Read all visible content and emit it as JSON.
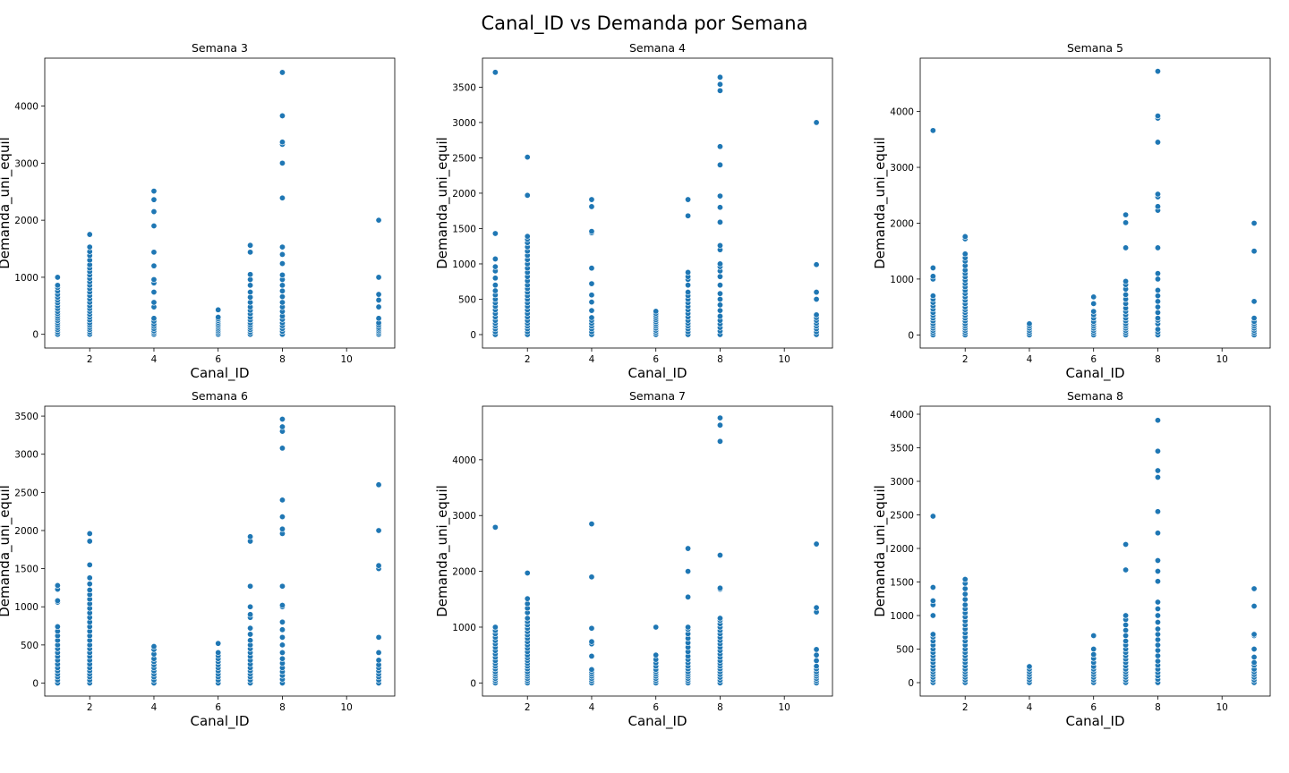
{
  "title": "Canal_ID vs Demanda por Semana",
  "colors": {
    "marker": "#1f77b4",
    "marker_edge": "#ffffff",
    "frame": "#000000"
  },
  "chart_data": [
    {
      "type": "scatter",
      "title": "Semana 3",
      "xlabel": "Canal_ID",
      "ylabel": "Demanda_uni_equil",
      "xlim": [
        0.6,
        11.5
      ],
      "ylim": [
        -240,
        4840
      ],
      "xticks": [
        2,
        4,
        6,
        8,
        10
      ],
      "yticks": [
        0,
        1000,
        2000,
        3000,
        4000
      ],
      "grid": false,
      "series": [
        {
          "x": 1,
          "y": [
            0,
            40,
            80,
            120,
            160,
            200,
            240,
            280,
            320,
            360,
            400,
            450,
            500,
            550,
            600,
            650,
            700,
            760,
            820,
            860,
            1000
          ]
        },
        {
          "x": 2,
          "y": [
            0,
            40,
            80,
            120,
            160,
            200,
            250,
            300,
            350,
            400,
            450,
            500,
            560,
            620,
            680,
            740,
            800,
            860,
            920,
            980,
            1040,
            1100,
            1160,
            1220,
            1300,
            1380,
            1450,
            1530,
            1750
          ]
        },
        {
          "x": 4,
          "y": [
            0,
            30,
            60,
            100,
            140,
            180,
            230,
            280,
            480,
            560,
            740,
            900,
            960,
            1200,
            1440,
            1900,
            2150,
            2360,
            2510
          ]
        },
        {
          "x": 6,
          "y": [
            0,
            30,
            60,
            90,
            120,
            150,
            180,
            210,
            240,
            270,
            300,
            430
          ]
        },
        {
          "x": 7,
          "y": [
            0,
            40,
            80,
            120,
            160,
            200,
            250,
            300,
            360,
            420,
            480,
            560,
            650,
            740,
            860,
            960,
            1050,
            1440,
            1560
          ]
        },
        {
          "x": 8,
          "y": [
            0,
            50,
            100,
            150,
            200,
            260,
            320,
            400,
            480,
            560,
            660,
            760,
            860,
            960,
            1040,
            1240,
            1400,
            1530,
            2390,
            3000,
            3330,
            3370,
            3830,
            4590
          ]
        },
        {
          "x": 11,
          "y": [
            0,
            30,
            60,
            90,
            120,
            160,
            200,
            280,
            480,
            600,
            700,
            1000,
            2000
          ]
        }
      ]
    },
    {
      "type": "scatter",
      "title": "Semana 4",
      "xlabel": "Canal_ID",
      "ylabel": "Demanda_uni_equil",
      "xlim": [
        0.6,
        11.5
      ],
      "ylim": [
        -190,
        3910
      ],
      "xticks": [
        2,
        4,
        6,
        8,
        10
      ],
      "yticks": [
        0,
        500,
        1000,
        1500,
        2000,
        2500,
        3000,
        3500
      ],
      "grid": false,
      "series": [
        {
          "x": 1,
          "y": [
            0,
            40,
            80,
            120,
            160,
            200,
            250,
            300,
            350,
            400,
            450,
            500,
            560,
            620,
            700,
            800,
            900,
            960,
            1070,
            1430,
            3710
          ]
        },
        {
          "x": 2,
          "y": [
            0,
            40,
            80,
            120,
            160,
            200,
            250,
            300,
            350,
            400,
            450,
            500,
            550,
            600,
            650,
            700,
            760,
            820,
            880,
            940,
            1000,
            1060,
            1120,
            1180,
            1240,
            1300,
            1350,
            1390,
            1970,
            2510
          ]
        },
        {
          "x": 4,
          "y": [
            0,
            40,
            80,
            120,
            160,
            200,
            240,
            340,
            460,
            560,
            720,
            940,
            1440,
            1460,
            1810,
            1910
          ]
        },
        {
          "x": 6,
          "y": [
            0,
            30,
            60,
            90,
            120,
            150,
            180,
            210,
            240,
            270,
            300,
            330
          ]
        },
        {
          "x": 7,
          "y": [
            0,
            40,
            80,
            120,
            160,
            200,
            250,
            300,
            350,
            400,
            450,
            500,
            550,
            600,
            700,
            780,
            820,
            880,
            1680,
            1910
          ]
        },
        {
          "x": 8,
          "y": [
            0,
            50,
            100,
            150,
            200,
            260,
            340,
            420,
            500,
            580,
            700,
            820,
            900,
            960,
            1000,
            1200,
            1260,
            1590,
            1800,
            1960,
            2400,
            2660,
            3450,
            3540,
            3640
          ]
        },
        {
          "x": 11,
          "y": [
            0,
            40,
            80,
            120,
            160,
            200,
            240,
            280,
            500,
            600,
            990,
            3000
          ]
        }
      ]
    },
    {
      "type": "scatter",
      "title": "Semana 5",
      "xlabel": "Canal_ID",
      "ylabel": "Demanda_uni_equil",
      "xlim": [
        0.6,
        11.5
      ],
      "ylim": [
        -235,
        4955
      ],
      "xticks": [
        2,
        4,
        6,
        8,
        10
      ],
      "yticks": [
        0,
        1000,
        2000,
        3000,
        4000
      ],
      "grid": false,
      "series": [
        {
          "x": 1,
          "y": [
            0,
            40,
            80,
            120,
            160,
            200,
            250,
            300,
            350,
            400,
            460,
            520,
            580,
            640,
            700,
            1000,
            1050,
            1200,
            3660
          ]
        },
        {
          "x": 2,
          "y": [
            0,
            40,
            80,
            120,
            160,
            200,
            250,
            300,
            350,
            400,
            450,
            500,
            560,
            620,
            680,
            740,
            800,
            860,
            920,
            980,
            1040,
            1100,
            1160,
            1240,
            1320,
            1380,
            1450,
            1720,
            1760
          ]
        },
        {
          "x": 4,
          "y": [
            0,
            40,
            80,
            120,
            160,
            200
          ]
        },
        {
          "x": 6,
          "y": [
            0,
            40,
            80,
            120,
            160,
            200,
            240,
            300,
            360,
            420,
            560,
            680
          ]
        },
        {
          "x": 7,
          "y": [
            0,
            40,
            80,
            120,
            160,
            200,
            250,
            300,
            360,
            420,
            480,
            560,
            640,
            720,
            820,
            900,
            960,
            1560,
            2010,
            2150
          ]
        },
        {
          "x": 8,
          "y": [
            0,
            50,
            100,
            200,
            260,
            300,
            400,
            500,
            600,
            700,
            800,
            1000,
            1100,
            1560,
            2230,
            2300,
            2470,
            2520,
            3450,
            3880,
            3920,
            4720
          ]
        },
        {
          "x": 11,
          "y": [
            0,
            40,
            80,
            120,
            160,
            200,
            240,
            300,
            600,
            1500,
            2000
          ]
        }
      ]
    },
    {
      "type": "scatter",
      "title": "Semana 6",
      "xlabel": "Canal_ID",
      "ylabel": "Demanda_uni_equil",
      "xlim": [
        0.6,
        11.5
      ],
      "ylim": [
        -170,
        3630
      ],
      "xticks": [
        2,
        4,
        6,
        8,
        10
      ],
      "yticks": [
        0,
        500,
        1000,
        1500,
        2000,
        2500,
        3000,
        3500
      ],
      "grid": false,
      "series": [
        {
          "x": 1,
          "y": [
            0,
            40,
            80,
            120,
            160,
            200,
            250,
            300,
            350,
            400,
            450,
            500,
            560,
            620,
            680,
            740,
            1060,
            1080,
            1230,
            1280
          ]
        },
        {
          "x": 2,
          "y": [
            0,
            40,
            80,
            120,
            160,
            200,
            250,
            300,
            350,
            400,
            450,
            500,
            560,
            620,
            680,
            740,
            800,
            860,
            920,
            980,
            1040,
            1100,
            1160,
            1220,
            1300,
            1380,
            1550,
            1860,
            1960
          ]
        },
        {
          "x": 4,
          "y": [
            0,
            40,
            80,
            120,
            160,
            200,
            240,
            280,
            320,
            380,
            440,
            480
          ]
        },
        {
          "x": 6,
          "y": [
            0,
            40,
            80,
            120,
            160,
            200,
            240,
            280,
            320,
            360,
            400,
            520
          ]
        },
        {
          "x": 7,
          "y": [
            0,
            40,
            80,
            120,
            160,
            200,
            250,
            300,
            350,
            400,
            450,
            500,
            560,
            640,
            720,
            860,
            900,
            1000,
            1270,
            1860,
            1920
          ]
        },
        {
          "x": 8,
          "y": [
            0,
            50,
            100,
            150,
            200,
            260,
            320,
            400,
            500,
            600,
            700,
            800,
            1000,
            1020,
            1270,
            1960,
            2020,
            2180,
            2400,
            3080,
            3300,
            3360,
            3460
          ]
        },
        {
          "x": 11,
          "y": [
            0,
            40,
            80,
            120,
            160,
            200,
            240,
            300,
            400,
            600,
            1500,
            1540,
            2000,
            2600
          ]
        }
      ]
    },
    {
      "type": "scatter",
      "title": "Semana 7",
      "xlabel": "Canal_ID",
      "ylabel": "Demanda_uni_equil",
      "xlim": [
        0.6,
        11.5
      ],
      "ylim": [
        -235,
        4960
      ],
      "xticks": [
        2,
        4,
        6,
        8,
        10
      ],
      "yticks": [
        0,
        1000,
        2000,
        3000,
        4000
      ],
      "grid": false,
      "series": [
        {
          "x": 1,
          "y": [
            0,
            40,
            80,
            120,
            160,
            200,
            250,
            300,
            350,
            400,
            460,
            520,
            580,
            640,
            700,
            760,
            820,
            880,
            940,
            1000,
            2790
          ]
        },
        {
          "x": 2,
          "y": [
            0,
            40,
            80,
            120,
            160,
            200,
            250,
            300,
            350,
            400,
            450,
            500,
            560,
            620,
            680,
            740,
            800,
            860,
            920,
            980,
            1040,
            1100,
            1160,
            1260,
            1340,
            1420,
            1510,
            1970
          ]
        },
        {
          "x": 4,
          "y": [
            0,
            40,
            80,
            120,
            160,
            200,
            240,
            480,
            700,
            740,
            980,
            1900,
            2850
          ]
        },
        {
          "x": 6,
          "y": [
            0,
            40,
            80,
            120,
            160,
            200,
            240,
            300,
            360,
            420,
            500,
            1000
          ]
        },
        {
          "x": 7,
          "y": [
            0,
            40,
            80,
            120,
            160,
            200,
            250,
            300,
            360,
            420,
            480,
            560,
            640,
            720,
            800,
            880,
            960,
            1000,
            1540,
            2000,
            2410
          ]
        },
        {
          "x": 8,
          "y": [
            0,
            50,
            100,
            150,
            200,
            250,
            300,
            350,
            400,
            460,
            520,
            580,
            640,
            700,
            760,
            820,
            880,
            940,
            1000,
            1060,
            1120,
            1160,
            1680,
            1700,
            2290,
            4330,
            4620,
            4750
          ]
        },
        {
          "x": 11,
          "y": [
            0,
            40,
            80,
            120,
            160,
            200,
            250,
            300,
            400,
            500,
            600,
            1270,
            1350,
            2490
          ]
        }
      ]
    },
    {
      "type": "scatter",
      "title": "Semana 8",
      "xlabel": "Canal_ID",
      "ylabel": "Demanda_uni_equil",
      "xlim": [
        0.6,
        11.5
      ],
      "ylim": [
        -200,
        4120
      ],
      "xticks": [
        2,
        4,
        6,
        8,
        10
      ],
      "yticks": [
        0,
        500,
        1000,
        1500,
        2000,
        2500,
        3000,
        3500,
        4000
      ],
      "grid": false,
      "series": [
        {
          "x": 1,
          "y": [
            0,
            40,
            80,
            120,
            160,
            200,
            250,
            300,
            350,
            400,
            450,
            500,
            560,
            620,
            680,
            720,
            1000,
            1160,
            1220,
            1420,
            2480
          ]
        },
        {
          "x": 2,
          "y": [
            0,
            40,
            80,
            120,
            160,
            200,
            250,
            300,
            350,
            400,
            450,
            500,
            560,
            620,
            680,
            740,
            800,
            860,
            920,
            980,
            1040,
            1100,
            1160,
            1240,
            1320,
            1400,
            1480,
            1540
          ]
        },
        {
          "x": 4,
          "y": [
            0,
            40,
            80,
            120,
            160,
            200,
            240
          ]
        },
        {
          "x": 6,
          "y": [
            0,
            40,
            80,
            120,
            160,
            200,
            240,
            300,
            360,
            420,
            500,
            700
          ]
        },
        {
          "x": 7,
          "y": [
            0,
            40,
            80,
            120,
            160,
            200,
            250,
            300,
            350,
            400,
            450,
            500,
            560,
            620,
            700,
            780,
            860,
            940,
            1000,
            1680,
            2060
          ]
        },
        {
          "x": 8,
          "y": [
            0,
            50,
            100,
            150,
            200,
            260,
            320,
            400,
            480,
            560,
            640,
            720,
            800,
            900,
            1000,
            1100,
            1200,
            1510,
            1660,
            1820,
            2230,
            2550,
            3060,
            3160,
            3450,
            3910
          ]
        },
        {
          "x": 11,
          "y": [
            0,
            40,
            80,
            120,
            160,
            200,
            260,
            300,
            380,
            500,
            700,
            720,
            1140,
            1400
          ]
        }
      ]
    }
  ]
}
